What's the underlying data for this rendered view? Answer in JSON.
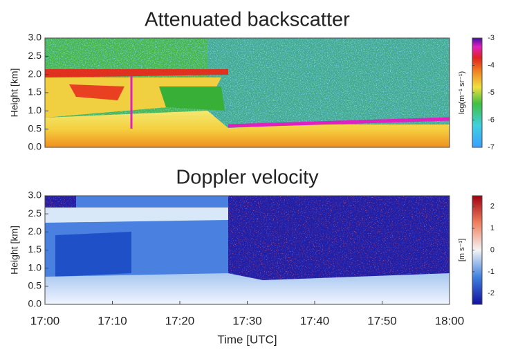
{
  "chart_data": [
    {
      "type": "heatmap",
      "title": "Attenuated backscatter",
      "ylabel": "Height [km]",
      "ylim": [
        0,
        3
      ],
      "yticks": [
        {
          "value": 0,
          "label": "0.0"
        },
        0.5,
        {
          "value": 1,
          "label": "1.0"
        },
        1.5,
        {
          "value": 2,
          "label": "2.0"
        },
        2.5,
        {
          "value": 3,
          "label": "3.0"
        }
      ],
      "colorbar": {
        "label": "log(m⁻¹ sr⁻¹)",
        "lim": [
          -7,
          -3
        ],
        "ticks": [
          -3,
          -4,
          -5,
          -6,
          -7
        ]
      }
    },
    {
      "type": "heatmap",
      "title": "Doppler velocity",
      "ylabel": "Height [km]",
      "xlabel": "Time [UTC]",
      "ylim": [
        0,
        3
      ],
      "yticks": [
        {
          "value": 0,
          "label": "0.0"
        },
        0.5,
        {
          "value": 1,
          "label": "1.0"
        },
        1.5,
        {
          "value": 2,
          "label": "2.0"
        },
        2.5,
        {
          "value": 3,
          "label": "3.0"
        }
      ],
      "xticks": [
        "17:00",
        "17:10",
        "17:20",
        "17:30",
        "17:40",
        "17:50",
        "18:00"
      ],
      "colorbar": {
        "label": "[m s⁻¹]",
        "lim": [
          -2.5,
          2.5
        ],
        "ticks": [
          2,
          1,
          0,
          -1,
          -2
        ]
      }
    }
  ]
}
